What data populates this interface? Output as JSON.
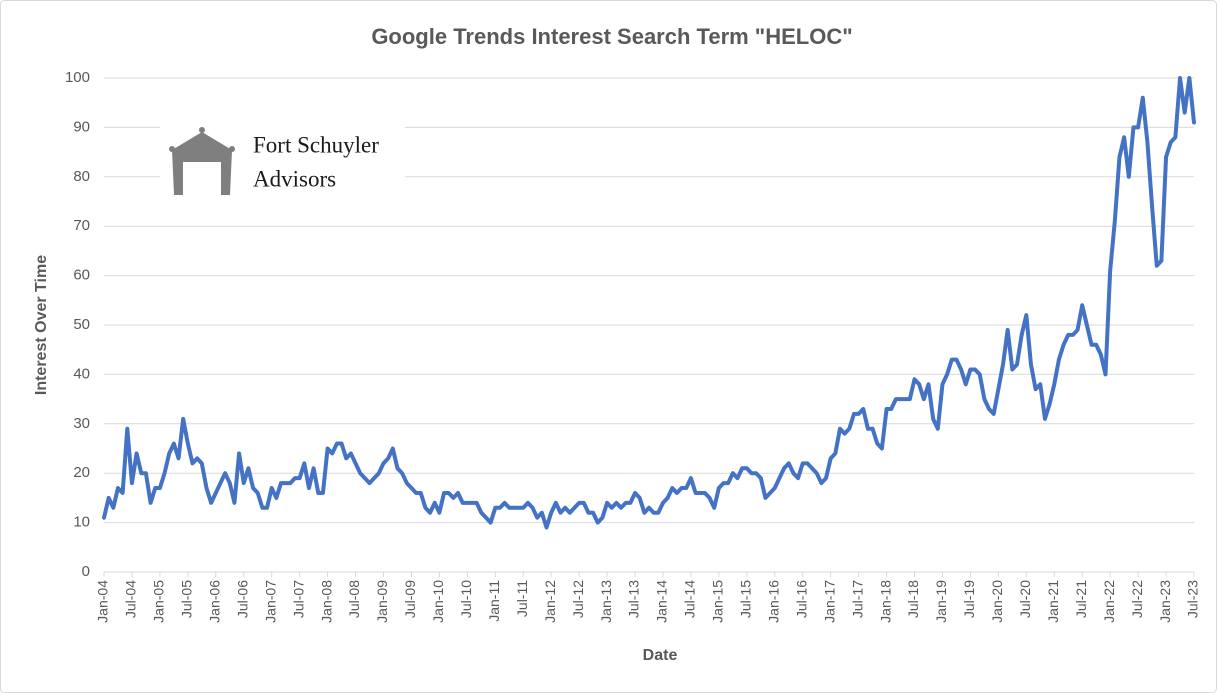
{
  "chart_data": {
    "type": "line",
    "title": "Google Trends Interest Search Term \"HELOC\"",
    "x_label": "Date",
    "y_label": "Interest Over Time",
    "logo": {
      "line1": "Fort Schuyler",
      "line2": "Advisors"
    },
    "color": "#4472c4",
    "grid": true,
    "ylim": [
      0,
      100
    ],
    "yticks": [
      0,
      10,
      20,
      30,
      40,
      50,
      60,
      70,
      80,
      90,
      100
    ],
    "categories": [
      "Jan-04",
      null,
      null,
      null,
      null,
      null,
      "Jul-04",
      null,
      null,
      null,
      null,
      null,
      "Jan-05",
      null,
      null,
      null,
      null,
      null,
      "Jul-05",
      null,
      null,
      null,
      null,
      null,
      "Jan-06",
      null,
      null,
      null,
      null,
      null,
      "Jul-06",
      null,
      null,
      null,
      null,
      null,
      "Jan-07",
      null,
      null,
      null,
      null,
      null,
      "Jul-07",
      null,
      null,
      null,
      null,
      null,
      "Jan-08",
      null,
      null,
      null,
      null,
      null,
      "Jul-08",
      null,
      null,
      null,
      null,
      null,
      "Jan-09",
      null,
      null,
      null,
      null,
      null,
      "Jul-09",
      null,
      null,
      null,
      null,
      null,
      "Jan-10",
      null,
      null,
      null,
      null,
      null,
      "Jul-10",
      null,
      null,
      null,
      null,
      null,
      "Jan-11",
      null,
      null,
      null,
      null,
      null,
      "Jul-11",
      null,
      null,
      null,
      null,
      null,
      "Jan-12",
      null,
      null,
      null,
      null,
      null,
      "Jul-12",
      null,
      null,
      null,
      null,
      null,
      "Jan-13",
      null,
      null,
      null,
      null,
      null,
      "Jul-13",
      null,
      null,
      null,
      null,
      null,
      "Jan-14",
      null,
      null,
      null,
      null,
      null,
      "Jul-14",
      null,
      null,
      null,
      null,
      null,
      "Jan-15",
      null,
      null,
      null,
      null,
      null,
      "Jul-15",
      null,
      null,
      null,
      null,
      null,
      "Jan-16",
      null,
      null,
      null,
      null,
      null,
      "Jul-16",
      null,
      null,
      null,
      null,
      null,
      "Jan-17",
      null,
      null,
      null,
      null,
      null,
      "Jul-17",
      null,
      null,
      null,
      null,
      null,
      "Jan-18",
      null,
      null,
      null,
      null,
      null,
      "Jul-18",
      null,
      null,
      null,
      null,
      null,
      "Jan-19",
      null,
      null,
      null,
      null,
      null,
      "Jul-19",
      null,
      null,
      null,
      null,
      null,
      "Jan-20",
      null,
      null,
      null,
      null,
      null,
      "Jul-20",
      null,
      null,
      null,
      null,
      null,
      "Jan-21",
      null,
      null,
      null,
      null,
      null,
      "Jul-21",
      null,
      null,
      null,
      null,
      null,
      "Jan-22",
      null,
      null,
      null,
      null,
      null,
      "Jul-22",
      null,
      null,
      null,
      null,
      null,
      "Jan-23",
      null,
      null,
      null,
      null,
      null,
      "Jul-23"
    ],
    "values": [
      11,
      15,
      13,
      17,
      16,
      29,
      18,
      24,
      20,
      20,
      14,
      17,
      17,
      20,
      24,
      26,
      23,
      31,
      26,
      22,
      23,
      22,
      17,
      14,
      16,
      18,
      20,
      18,
      14,
      24,
      18,
      21,
      17,
      16,
      13,
      13,
      17,
      15,
      18,
      18,
      18,
      19,
      19,
      22,
      17,
      21,
      16,
      16,
      25,
      24,
      26,
      26,
      23,
      24,
      22,
      20,
      19,
      18,
      19,
      20,
      22,
      23,
      25,
      21,
      20,
      18,
      17,
      16,
      16,
      13,
      12,
      14,
      12,
      16,
      16,
      15,
      16,
      14,
      14,
      14,
      14,
      12,
      11,
      10,
      13,
      13,
      14,
      13,
      13,
      13,
      13,
      14,
      13,
      11,
      12,
      9,
      12,
      14,
      12,
      13,
      12,
      13,
      14,
      14,
      12,
      12,
      10,
      11,
      14,
      13,
      14,
      13,
      14,
      14,
      16,
      15,
      12,
      13,
      12,
      12,
      14,
      15,
      17,
      16,
      17,
      17,
      19,
      16,
      16,
      16,
      15,
      13,
      17,
      18,
      18,
      20,
      19,
      21,
      21,
      20,
      20,
      19,
      15,
      16,
      17,
      19,
      21,
      22,
      20,
      19,
      22,
      22,
      21,
      20,
      18,
      19,
      23,
      24,
      29,
      28,
      29,
      32,
      32,
      33,
      29,
      29,
      26,
      25,
      33,
      33,
      35,
      35,
      35,
      35,
      39,
      38,
      35,
      38,
      31,
      29,
      38,
      40,
      43,
      43,
      41,
      38,
      41,
      41,
      40,
      35,
      33,
      32,
      37,
      42,
      49,
      41,
      42,
      48,
      52,
      42,
      37,
      38,
      31,
      34,
      38,
      43,
      46,
      48,
      48,
      49,
      54,
      50,
      46,
      46,
      44,
      40,
      61,
      71,
      84,
      88,
      80,
      90,
      90,
      96,
      87,
      74,
      62,
      63,
      84,
      87,
      88,
      100,
      93,
      100,
      91
    ]
  }
}
